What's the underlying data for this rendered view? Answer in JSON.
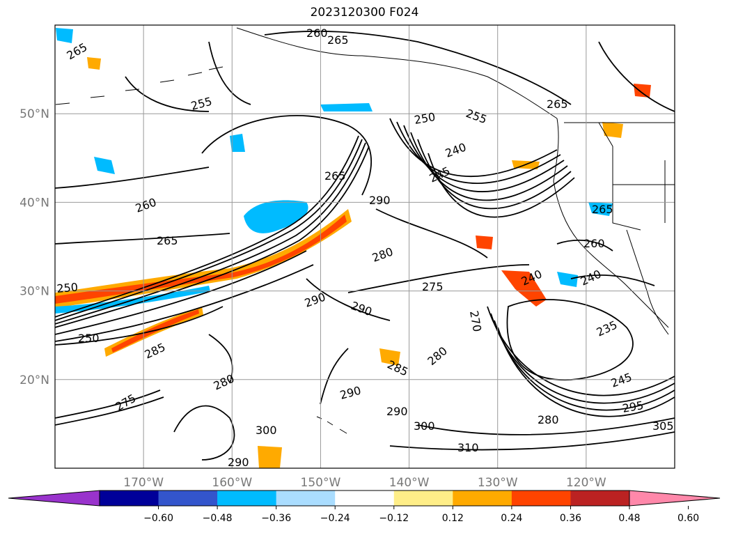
{
  "title": "2023120300 F024",
  "map": {
    "lon_range": [
      -180,
      -110
    ],
    "lat_range": [
      10,
      60
    ],
    "lat_ticks": [
      {
        "value": 20,
        "label": "20°N"
      },
      {
        "value": 30,
        "label": "30°N"
      },
      {
        "value": 40,
        "label": "40°N"
      },
      {
        "value": 50,
        "label": "50°N"
      }
    ],
    "lon_ticks": [
      {
        "value": -170,
        "label": "170°W"
      },
      {
        "value": -160,
        "label": "160°W"
      },
      {
        "value": -150,
        "label": "150°W"
      },
      {
        "value": -140,
        "label": "140°W"
      },
      {
        "value": -130,
        "label": "130°W"
      },
      {
        "value": -120,
        "label": "120°W"
      }
    ],
    "grid": true,
    "contour_labels": [
      "265",
      "260",
      "255",
      "250",
      "245",
      "240",
      "235",
      "270",
      "275",
      "280",
      "285",
      "290",
      "295",
      "300",
      "305",
      "310"
    ]
  },
  "colorbar": {
    "extend": "both",
    "colors": [
      "#9933cc",
      "#000099",
      "#3355cc",
      "#00bbff",
      "#aaddff",
      "#ffffff",
      "#ffee88",
      "#ffaa00",
      "#ff4400",
      "#bb2222",
      "#ff88aa"
    ],
    "tick_labels": [
      "−0.60",
      "−0.48",
      "−0.36",
      "−0.24",
      "−0.12",
      "0.12",
      "0.24",
      "0.36",
      "0.48",
      "0.60"
    ]
  }
}
